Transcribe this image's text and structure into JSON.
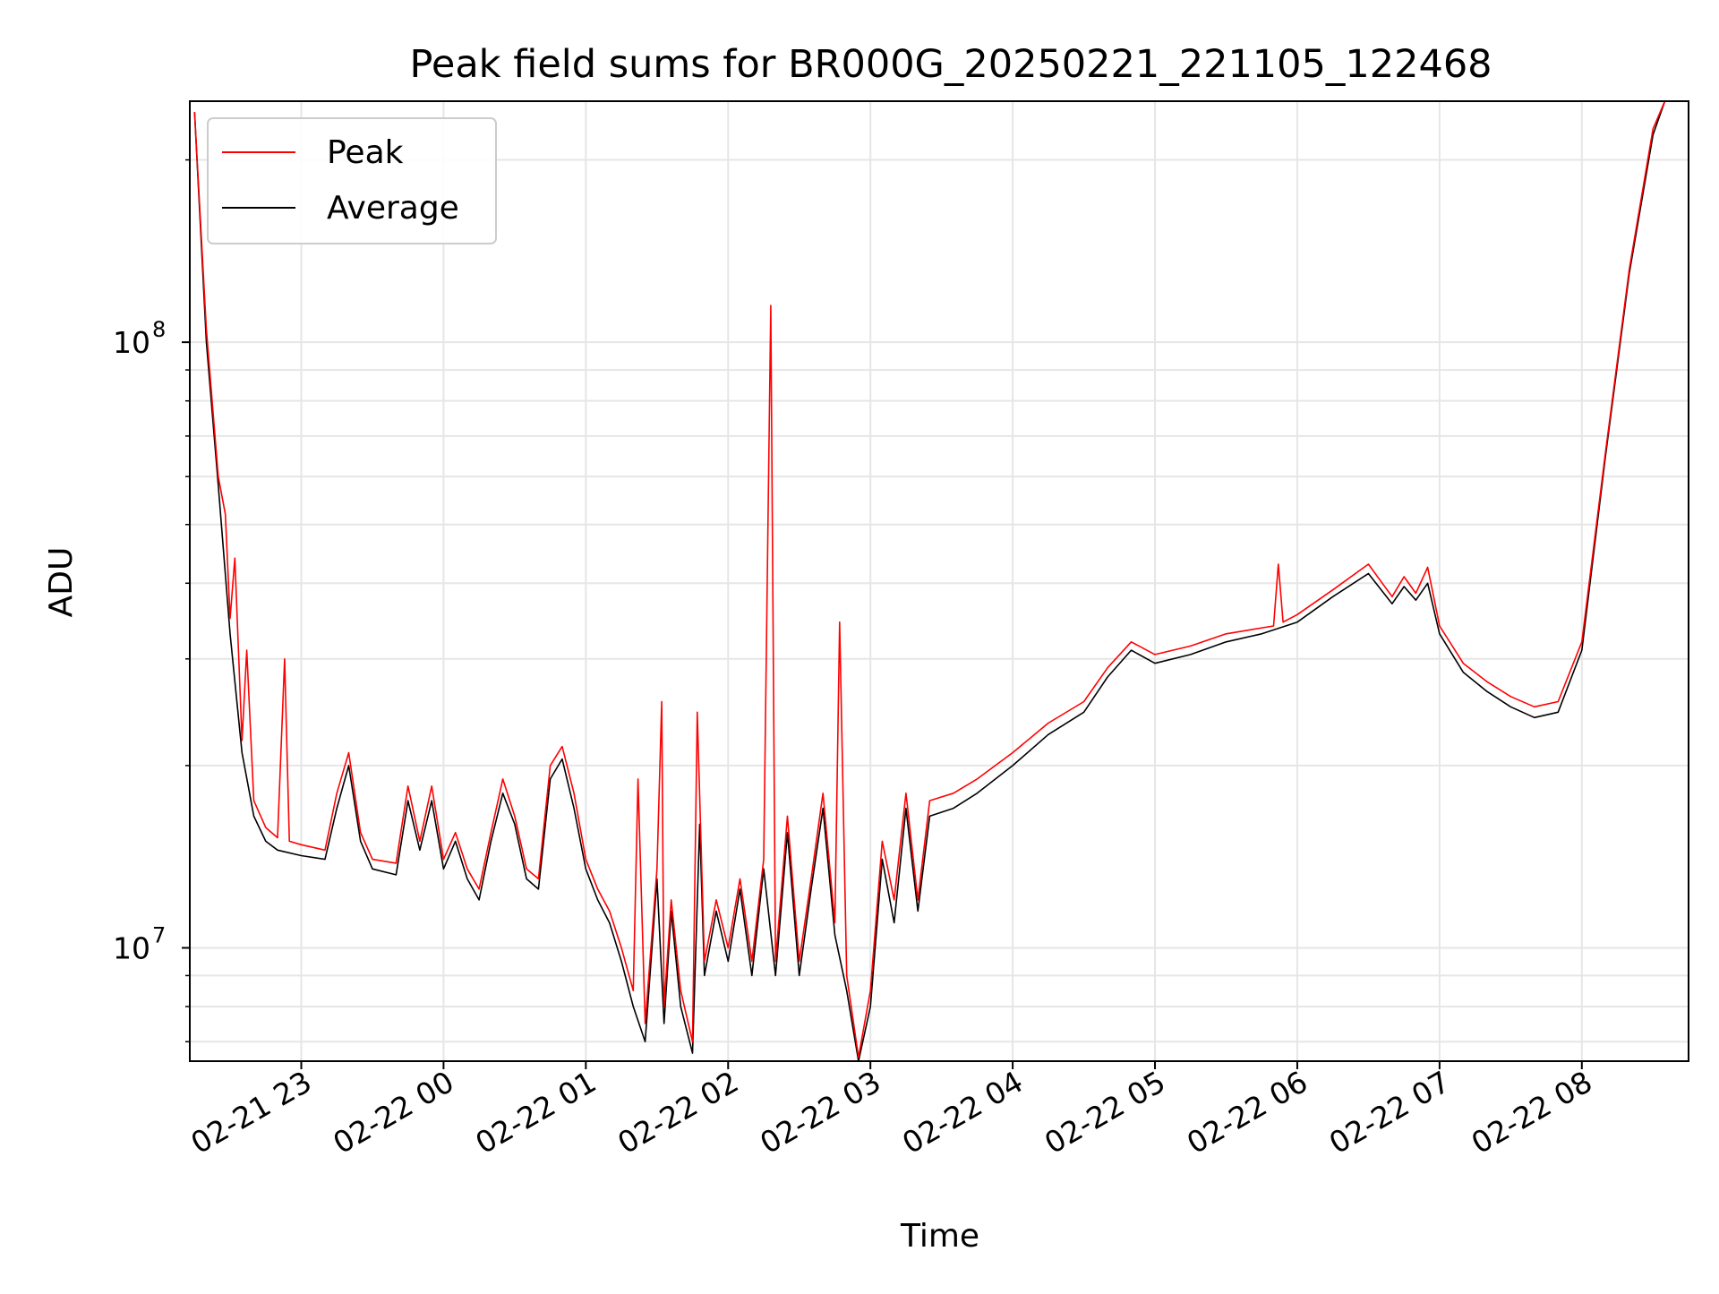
{
  "chart_data": {
    "type": "line",
    "title": "Peak field sums for BR000G_20250221_221105_122468",
    "xlabel": "Time",
    "ylabel": "ADU",
    "y_scale": "log",
    "ylim": [
      6500000,
      250000000
    ],
    "xlim": [
      "2025-02-21 22:13",
      "2025-02-22 08:45"
    ],
    "grid": true,
    "legend": {
      "placement": "top-left"
    },
    "x_ticks": [
      {
        "t": "2025-02-21 23:00",
        "label": "02-21 23"
      },
      {
        "t": "2025-02-22 00:00",
        "label": "02-22 00"
      },
      {
        "t": "2025-02-22 01:00",
        "label": "02-22 01"
      },
      {
        "t": "2025-02-22 02:00",
        "label": "02-22 02"
      },
      {
        "t": "2025-02-22 03:00",
        "label": "02-22 03"
      },
      {
        "t": "2025-02-22 04:00",
        "label": "02-22 04"
      },
      {
        "t": "2025-02-22 05:00",
        "label": "02-22 05"
      },
      {
        "t": "2025-02-22 06:00",
        "label": "02-22 06"
      },
      {
        "t": "2025-02-22 07:00",
        "label": "02-22 07"
      },
      {
        "t": "2025-02-22 08:00",
        "label": "02-22 08"
      }
    ],
    "y_ticks": [
      {
        "value": 10000000,
        "base": "10",
        "exp": "7"
      },
      {
        "value": 100000000,
        "base": "10",
        "exp": "8"
      }
    ],
    "series": [
      {
        "name": "Average",
        "color": "#000000",
        "points": [
          [
            "2025-02-21 22:15",
            240000000
          ],
          [
            "2025-02-21 22:20",
            100000000
          ],
          [
            "2025-02-21 22:25",
            58000000
          ],
          [
            "2025-02-21 22:30",
            33000000
          ],
          [
            "2025-02-21 22:35",
            21000000
          ],
          [
            "2025-02-21 22:40",
            16500000
          ],
          [
            "2025-02-21 22:45",
            15000000
          ],
          [
            "2025-02-21 22:50",
            14500000
          ],
          [
            "2025-02-21 23:00",
            14200000
          ],
          [
            "2025-02-21 23:10",
            14000000
          ],
          [
            "2025-02-21 23:15",
            17000000
          ],
          [
            "2025-02-21 23:20",
            20000000
          ],
          [
            "2025-02-21 23:25",
            15000000
          ],
          [
            "2025-02-21 23:30",
            13500000
          ],
          [
            "2025-02-21 23:40",
            13200000
          ],
          [
            "2025-02-21 23:45",
            17500000
          ],
          [
            "2025-02-21 23:50",
            14500000
          ],
          [
            "2025-02-21 23:55",
            17500000
          ],
          [
            "2025-02-22 00:00",
            13500000
          ],
          [
            "2025-02-22 00:05",
            15000000
          ],
          [
            "2025-02-22 00:10",
            13000000
          ],
          [
            "2025-02-22 00:15",
            12000000
          ],
          [
            "2025-02-22 00:20",
            15000000
          ],
          [
            "2025-02-22 00:25",
            18000000
          ],
          [
            "2025-02-22 00:30",
            16000000
          ],
          [
            "2025-02-22 00:35",
            13000000
          ],
          [
            "2025-02-22 00:40",
            12500000
          ],
          [
            "2025-02-22 00:45",
            19000000
          ],
          [
            "2025-02-22 00:50",
            20500000
          ],
          [
            "2025-02-22 00:55",
            17000000
          ],
          [
            "2025-02-22 01:00",
            13500000
          ],
          [
            "2025-02-22 01:05",
            12000000
          ],
          [
            "2025-02-22 01:10",
            11000000
          ],
          [
            "2025-02-22 01:15",
            9500000
          ],
          [
            "2025-02-22 01:20",
            8000000
          ],
          [
            "2025-02-22 01:25",
            7000000
          ],
          [
            "2025-02-22 01:30",
            13000000
          ],
          [
            "2025-02-22 01:33",
            7500000
          ],
          [
            "2025-02-22 01:36",
            11500000
          ],
          [
            "2025-02-22 01:40",
            8000000
          ],
          [
            "2025-02-22 01:45",
            6700000
          ],
          [
            "2025-02-22 01:48",
            16000000
          ],
          [
            "2025-02-22 01:50",
            9000000
          ],
          [
            "2025-02-22 01:55",
            11500000
          ],
          [
            "2025-02-22 02:00",
            9500000
          ],
          [
            "2025-02-22 02:05",
            12500000
          ],
          [
            "2025-02-22 02:10",
            9000000
          ],
          [
            "2025-02-22 02:15",
            13500000
          ],
          [
            "2025-02-22 02:20",
            9000000
          ],
          [
            "2025-02-22 02:25",
            15500000
          ],
          [
            "2025-02-22 02:30",
            9000000
          ],
          [
            "2025-02-22 02:35",
            12500000
          ],
          [
            "2025-02-22 02:40",
            17000000
          ],
          [
            "2025-02-22 02:45",
            10500000
          ],
          [
            "2025-02-22 02:50",
            8500000
          ],
          [
            "2025-02-22 02:55",
            6400000
          ],
          [
            "2025-02-22 03:00",
            8000000
          ],
          [
            "2025-02-22 03:05",
            14000000
          ],
          [
            "2025-02-22 03:10",
            11000000
          ],
          [
            "2025-02-22 03:15",
            17000000
          ],
          [
            "2025-02-22 03:20",
            11500000
          ],
          [
            "2025-02-22 03:25",
            16500000
          ],
          [
            "2025-02-22 03:35",
            17000000
          ],
          [
            "2025-02-22 03:45",
            18000000
          ],
          [
            "2025-02-22 04:00",
            20000000
          ],
          [
            "2025-02-22 04:15",
            22500000
          ],
          [
            "2025-02-22 04:30",
            24500000
          ],
          [
            "2025-02-22 04:40",
            28000000
          ],
          [
            "2025-02-22 04:50",
            31000000
          ],
          [
            "2025-02-22 05:00",
            29500000
          ],
          [
            "2025-02-22 05:15",
            30500000
          ],
          [
            "2025-02-22 05:30",
            32000000
          ],
          [
            "2025-02-22 05:45",
            33000000
          ],
          [
            "2025-02-22 06:00",
            34500000
          ],
          [
            "2025-02-22 06:15",
            38000000
          ],
          [
            "2025-02-22 06:30",
            41500000
          ],
          [
            "2025-02-22 06:40",
            37000000
          ],
          [
            "2025-02-22 06:45",
            39500000
          ],
          [
            "2025-02-22 06:50",
            37500000
          ],
          [
            "2025-02-22 06:55",
            40000000
          ],
          [
            "2025-02-22 07:00",
            33000000
          ],
          [
            "2025-02-22 07:10",
            28500000
          ],
          [
            "2025-02-22 07:20",
            26500000
          ],
          [
            "2025-02-22 07:30",
            25000000
          ],
          [
            "2025-02-22 07:40",
            24000000
          ],
          [
            "2025-02-22 07:50",
            24500000
          ],
          [
            "2025-02-22 08:00",
            31000000
          ],
          [
            "2025-02-22 08:10",
            65000000
          ],
          [
            "2025-02-22 08:20",
            130000000
          ],
          [
            "2025-02-22 08:30",
            220000000
          ],
          [
            "2025-02-22 08:35",
            250000000
          ]
        ]
      },
      {
        "name": "Peak",
        "color": "#ff0000",
        "points": [
          [
            "2025-02-21 22:15",
            240000000
          ],
          [
            "2025-02-21 22:20",
            105000000
          ],
          [
            "2025-02-21 22:22",
            84000000
          ],
          [
            "2025-02-21 22:25",
            60000000
          ],
          [
            "2025-02-21 22:28",
            52000000
          ],
          [
            "2025-02-21 22:30",
            35000000
          ],
          [
            "2025-02-21 22:32",
            44000000
          ],
          [
            "2025-02-21 22:35",
            22000000
          ],
          [
            "2025-02-21 22:37",
            31000000
          ],
          [
            "2025-02-21 22:40",
            17500000
          ],
          [
            "2025-02-21 22:45",
            15800000
          ],
          [
            "2025-02-21 22:50",
            15200000
          ],
          [
            "2025-02-21 22:53",
            30000000
          ],
          [
            "2025-02-21 22:55",
            15000000
          ],
          [
            "2025-02-21 23:00",
            14800000
          ],
          [
            "2025-02-21 23:10",
            14500000
          ],
          [
            "2025-02-21 23:15",
            18000000
          ],
          [
            "2025-02-21 23:20",
            21000000
          ],
          [
            "2025-02-21 23:25",
            15500000
          ],
          [
            "2025-02-21 23:30",
            14000000
          ],
          [
            "2025-02-21 23:40",
            13800000
          ],
          [
            "2025-02-21 23:45",
            18500000
          ],
          [
            "2025-02-21 23:50",
            15000000
          ],
          [
            "2025-02-21 23:55",
            18500000
          ],
          [
            "2025-02-22 00:00",
            14000000
          ],
          [
            "2025-02-22 00:05",
            15500000
          ],
          [
            "2025-02-22 00:10",
            13500000
          ],
          [
            "2025-02-22 00:15",
            12500000
          ],
          [
            "2025-02-22 00:20",
            15500000
          ],
          [
            "2025-02-22 00:25",
            19000000
          ],
          [
            "2025-02-22 00:30",
            16500000
          ],
          [
            "2025-02-22 00:35",
            13500000
          ],
          [
            "2025-02-22 00:40",
            13000000
          ],
          [
            "2025-02-22 00:45",
            20000000
          ],
          [
            "2025-02-22 00:50",
            21500000
          ],
          [
            "2025-02-22 00:55",
            18000000
          ],
          [
            "2025-02-22 01:00",
            14000000
          ],
          [
            "2025-02-22 01:05",
            12500000
          ],
          [
            "2025-02-22 01:10",
            11500000
          ],
          [
            "2025-02-22 01:15",
            10000000
          ],
          [
            "2025-02-22 01:20",
            8500000
          ],
          [
            "2025-02-22 01:22",
            19000000
          ],
          [
            "2025-02-22 01:25",
            7500000
          ],
          [
            "2025-02-22 01:30",
            13500000
          ],
          [
            "2025-02-22 01:32",
            25500000
          ],
          [
            "2025-02-22 01:33",
            8000000
          ],
          [
            "2025-02-22 01:36",
            12000000
          ],
          [
            "2025-02-22 01:40",
            8500000
          ],
          [
            "2025-02-22 01:45",
            7000000
          ],
          [
            "2025-02-22 01:47",
            24500000
          ],
          [
            "2025-02-22 01:50",
            9500000
          ],
          [
            "2025-02-22 01:55",
            12000000
          ],
          [
            "2025-02-22 02:00",
            10000000
          ],
          [
            "2025-02-22 02:05",
            13000000
          ],
          [
            "2025-02-22 02:10",
            9500000
          ],
          [
            "2025-02-22 02:15",
            14000000
          ],
          [
            "2025-02-22 02:18",
            115000000
          ],
          [
            "2025-02-22 02:20",
            9500000
          ],
          [
            "2025-02-22 02:25",
            16500000
          ],
          [
            "2025-02-22 02:30",
            9500000
          ],
          [
            "2025-02-22 02:35",
            13000000
          ],
          [
            "2025-02-22 02:40",
            18000000
          ],
          [
            "2025-02-22 02:45",
            11000000
          ],
          [
            "2025-02-22 02:47",
            34500000
          ],
          [
            "2025-02-22 02:50",
            9000000
          ],
          [
            "2025-02-22 02:55",
            6600000
          ],
          [
            "2025-02-22 03:00",
            8500000
          ],
          [
            "2025-02-22 03:05",
            15000000
          ],
          [
            "2025-02-22 03:10",
            12000000
          ],
          [
            "2025-02-22 03:15",
            18000000
          ],
          [
            "2025-02-22 03:20",
            12000000
          ],
          [
            "2025-02-22 03:25",
            17500000
          ],
          [
            "2025-02-22 03:35",
            18000000
          ],
          [
            "2025-02-22 03:45",
            19000000
          ],
          [
            "2025-02-22 04:00",
            21000000
          ],
          [
            "2025-02-22 04:15",
            23500000
          ],
          [
            "2025-02-22 04:30",
            25500000
          ],
          [
            "2025-02-22 04:40",
            29000000
          ],
          [
            "2025-02-22 04:50",
            32000000
          ],
          [
            "2025-02-22 05:00",
            30500000
          ],
          [
            "2025-02-22 05:15",
            31500000
          ],
          [
            "2025-02-22 05:30",
            33000000
          ],
          [
            "2025-02-22 05:50",
            34000000
          ],
          [
            "2025-02-22 05:52",
            43000000
          ],
          [
            "2025-02-22 05:54",
            34500000
          ],
          [
            "2025-02-22 06:00",
            35500000
          ],
          [
            "2025-02-22 06:15",
            39000000
          ],
          [
            "2025-02-22 06:30",
            43000000
          ],
          [
            "2025-02-22 06:40",
            38000000
          ],
          [
            "2025-02-22 06:45",
            41000000
          ],
          [
            "2025-02-22 06:50",
            38500000
          ],
          [
            "2025-02-22 06:55",
            42500000
          ],
          [
            "2025-02-22 07:00",
            34000000
          ],
          [
            "2025-02-22 07:10",
            29500000
          ],
          [
            "2025-02-22 07:20",
            27500000
          ],
          [
            "2025-02-22 07:30",
            26000000
          ],
          [
            "2025-02-22 07:40",
            25000000
          ],
          [
            "2025-02-22 07:50",
            25500000
          ],
          [
            "2025-02-22 08:00",
            32000000
          ],
          [
            "2025-02-22 08:10",
            66000000
          ],
          [
            "2025-02-22 08:20",
            132000000
          ],
          [
            "2025-02-22 08:30",
            225000000
          ],
          [
            "2025-02-22 08:35",
            250000000
          ]
        ]
      }
    ],
    "legend_order": [
      "Peak",
      "Average"
    ]
  }
}
